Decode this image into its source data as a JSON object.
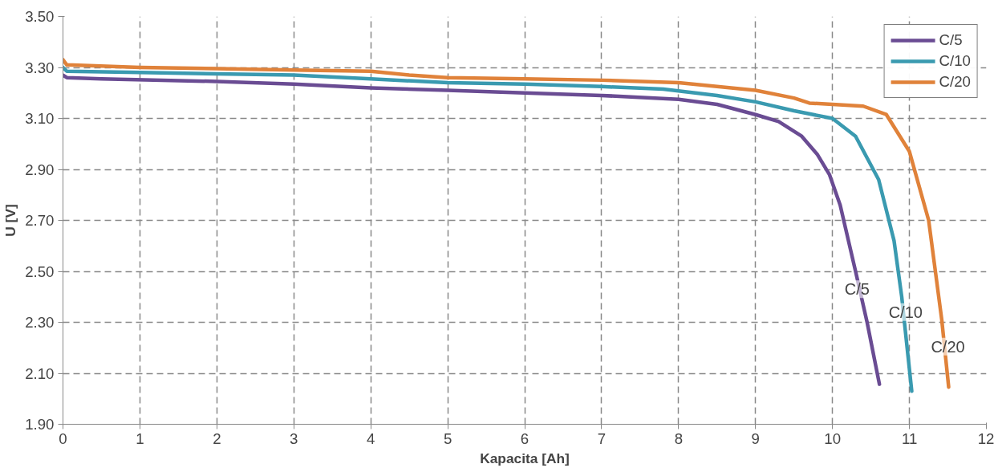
{
  "chart_data": {
    "type": "line",
    "xlabel": "Kapacita [Ah]",
    "ylabel": "U [V]",
    "xlim": [
      0,
      12
    ],
    "ylim": [
      1.9,
      3.5
    ],
    "xticks": [
      0,
      1,
      2,
      3,
      4,
      5,
      6,
      7,
      8,
      9,
      10,
      11,
      12
    ],
    "yticks": [
      {
        "value": 1.9,
        "label": "1.90"
      },
      {
        "value": 2.1,
        "label": "2.10"
      },
      {
        "value": 2.3,
        "label": "2.30"
      },
      {
        "value": 2.5,
        "label": "2.50"
      },
      {
        "value": 2.7,
        "label": "2.70"
      },
      {
        "value": 2.9,
        "label": "2.90"
      },
      {
        "value": 3.1,
        "label": "3.10"
      },
      {
        "value": 3.3,
        "label": "3.30"
      },
      {
        "value": 3.5,
        "label": "3.50"
      }
    ],
    "grid": true,
    "legend": "top right",
    "marker": "none",
    "line_style": "solid",
    "series": [
      {
        "name": "C/5",
        "color": "#6a4c93",
        "x": [
          0,
          0.05,
          0.5,
          2,
          3,
          4,
          5,
          6,
          7,
          8,
          8.5,
          9,
          9.3,
          9.6,
          9.8,
          9.96,
          10.1,
          10.3,
          10.45,
          10.61
        ],
        "values": [
          3.27,
          3.26,
          3.255,
          3.245,
          3.235,
          3.22,
          3.21,
          3.2,
          3.19,
          3.175,
          3.155,
          3.115,
          3.088,
          3.03,
          2.96,
          2.88,
          2.76,
          2.5,
          2.3,
          2.057
        ]
      },
      {
        "name": "C/10",
        "color": "#3a9ab0",
        "x": [
          0,
          0.05,
          1,
          2,
          3,
          4,
          5,
          6,
          7,
          7.8,
          8.5,
          9,
          9.5,
          10,
          10.3,
          10.6,
          10.8,
          10.9,
          11.03
        ],
        "values": [
          3.3,
          3.285,
          3.28,
          3.275,
          3.27,
          3.255,
          3.24,
          3.235,
          3.225,
          3.215,
          3.19,
          3.165,
          3.13,
          3.1,
          3.03,
          2.86,
          2.62,
          2.4,
          2.03
        ]
      },
      {
        "name": "C/20",
        "color": "#e0823a",
        "x": [
          0,
          0.05,
          1,
          2,
          3,
          4,
          4.5,
          5,
          6,
          7,
          8,
          8.5,
          9,
          9.5,
          9.7,
          10,
          10.4,
          10.7,
          11,
          11.25,
          11.42,
          11.51
        ],
        "values": [
          3.33,
          3.31,
          3.3,
          3.295,
          3.29,
          3.285,
          3.27,
          3.26,
          3.255,
          3.25,
          3.24,
          3.225,
          3.21,
          3.18,
          3.16,
          3.155,
          3.148,
          3.115,
          2.97,
          2.7,
          2.31,
          2.046
        ]
      }
    ],
    "annotations": [
      {
        "text": "C/5",
        "x": 10.32,
        "y": 2.43
      },
      {
        "text": "C/10",
        "x": 10.95,
        "y": 2.34
      },
      {
        "text": "C/20",
        "x": 11.5,
        "y": 2.205
      }
    ]
  }
}
